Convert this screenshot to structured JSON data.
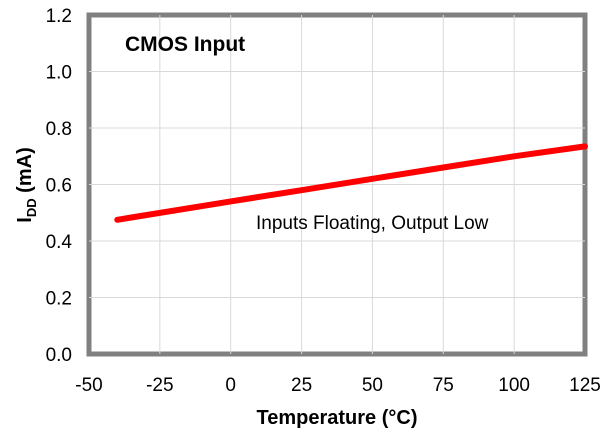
{
  "chart_data": {
    "type": "line",
    "title": "CMOS Input",
    "xlabel": "Temperature (°C)",
    "ylabel_main": "I",
    "ylabel_sub": "DD",
    "ylabel_unit": " (mA)",
    "xlim": [
      -50,
      125
    ],
    "ylim": [
      0.0,
      1.2
    ],
    "xticks": [
      -50,
      -25,
      0,
      25,
      50,
      75,
      100,
      125
    ],
    "xtick_labels": [
      "-50",
      "-25",
      "0",
      "25",
      "50",
      "75",
      "100",
      "125"
    ],
    "yticks": [
      0.0,
      0.2,
      0.4,
      0.6,
      0.8,
      1.0,
      1.2
    ],
    "ytick_labels": [
      "0.0",
      "0.2",
      "0.4",
      "0.6",
      "0.8",
      "1.0",
      "1.2"
    ],
    "grid": true,
    "annotation": "Inputs Floating, Output Low",
    "series": [
      {
        "color": "#ff0000",
        "x": [
          -40,
          0,
          25,
          50,
          75,
          100,
          125
        ],
        "y": [
          0.475,
          0.54,
          0.58,
          0.62,
          0.66,
          0.7,
          0.735
        ]
      }
    ]
  }
}
